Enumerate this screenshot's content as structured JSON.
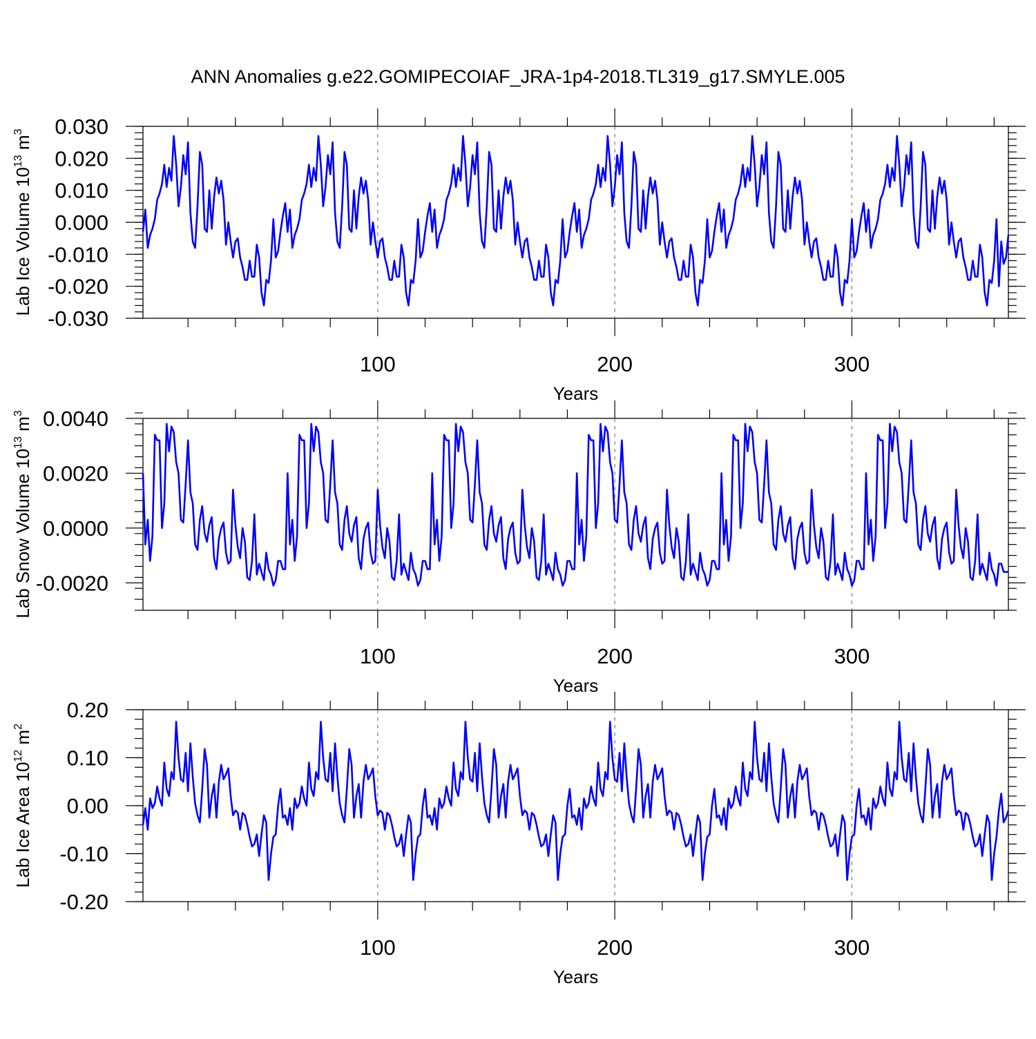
{
  "chart_data": {
    "type": "line",
    "title": "ANN Anomalies g.e22.GOMIPECOIAF_JRA-1p4-2018.TL319_g17.SMYLE.005",
    "line_color": "#0000ff",
    "x_start": 1,
    "x_end": 366,
    "xlim": [
      1,
      366
    ],
    "x_major_ticks": [
      100,
      200,
      300
    ],
    "x_minor_ticks": [
      20,
      40,
      60,
      80,
      120,
      140,
      160,
      180,
      220,
      240,
      260,
      280,
      320,
      340,
      360
    ],
    "x_reference_lines": [
      100,
      200,
      300
    ],
    "period": 61,
    "panels": [
      {
        "id": "ice-volume",
        "ylabel_main": "Lab Ice Volume 10",
        "ylabel_exp": "13",
        "ylabel_unit": " m",
        "ylabel_unit_exp": "3",
        "xlabel": "Years",
        "ylim": [
          -0.03,
          0.03
        ],
        "yticks": [
          {
            "value": 0.03,
            "label": "0.030"
          },
          {
            "value": 0.02,
            "label": "0.020"
          },
          {
            "value": 0.01,
            "label": "0.010"
          },
          {
            "value": 0.0,
            "label": "0.000"
          },
          {
            "value": -0.01,
            "label": "-0.010"
          },
          {
            "value": -0.02,
            "label": "-0.020"
          },
          {
            "value": -0.03,
            "label": "-0.030"
          }
        ],
        "y_minor_step": 0.002,
        "xtick_labels": [
          "100",
          "200",
          "300"
        ],
        "cycle_values": [
          -0.003,
          0.004,
          -0.008,
          -0.004,
          -0.002,
          0.001,
          0.007,
          0.009,
          0.012,
          0.018,
          0.011,
          0.017,
          0.013,
          0.027,
          0.018,
          0.005,
          0.011,
          0.021,
          0.015,
          0.025,
          0.003,
          -0.006,
          -0.008,
          0.005,
          0.022,
          0.018,
          -0.002,
          -0.003,
          0.01,
          -0.002,
          0.008,
          0.014,
          0.009,
          0.013,
          0.007,
          -0.007,
          0.0,
          -0.006,
          -0.011,
          -0.006,
          -0.005,
          -0.011,
          -0.014,
          -0.018,
          -0.018,
          -0.012,
          -0.017,
          -0.017,
          -0.007,
          -0.011,
          -0.022,
          -0.026,
          -0.018,
          -0.019,
          -0.012,
          0.001,
          -0.011,
          -0.009,
          -0.003,
          0.002,
          0.006
        ],
        "tail_values": [
          -0.02,
          -0.006,
          -0.013,
          -0.011,
          -0.004
        ]
      },
      {
        "id": "snow-volume",
        "ylabel_main": "Lab Snow Volume 10",
        "ylabel_exp": "13",
        "ylabel_unit": " m",
        "ylabel_unit_exp": "3",
        "xlabel": "Years",
        "ylim": [
          -0.003,
          0.004
        ],
        "yticks": [
          {
            "value": 0.004,
            "label": "0.0040"
          },
          {
            "value": 0.002,
            "label": "0.0020"
          },
          {
            "value": 0.0,
            "label": "0.0000"
          },
          {
            "value": -0.002,
            "label": "-0.0020"
          }
        ],
        "y_minor_step": 0.0004,
        "xtick_labels": [
          "100",
          "200",
          "300"
        ],
        "cycle_values": [
          0.002,
          -0.0006,
          0.0003,
          -0.0012,
          -0.0003,
          0.0034,
          0.0032,
          0.0032,
          0.0,
          0.0009,
          0.0038,
          0.0028,
          0.0037,
          0.0035,
          0.0024,
          0.002,
          0.0003,
          0.0002,
          0.0016,
          0.0032,
          0.0013,
          0.0009,
          -0.0006,
          -0.0008,
          0.0003,
          0.0008,
          -0.0002,
          -0.0005,
          0.0001,
          0.0004,
          -0.0011,
          -0.0015,
          -0.0004,
          0.0,
          0.0002,
          -0.0009,
          -0.0013,
          -0.0012,
          0.0014,
          0.0001,
          -0.0007,
          -0.0011,
          0.0,
          -0.0005,
          -0.0018,
          -0.0019,
          -0.0012,
          0.0005,
          -0.0017,
          -0.0013,
          -0.0016,
          -0.0019,
          -0.0009,
          -0.0015,
          -0.0017,
          -0.0021,
          -0.0019,
          -0.0012,
          -0.0012,
          -0.0015,
          -0.0015
        ],
        "tail_values": [
          -0.0013,
          -0.0013,
          -0.0016,
          -0.0016,
          -0.0016
        ]
      },
      {
        "id": "ice-area",
        "ylabel_main": "Lab Ice Area 10",
        "ylabel_exp": "12",
        "ylabel_unit": " m",
        "ylabel_unit_exp": "2",
        "xlabel": "Years",
        "ylim": [
          -0.2,
          0.2
        ],
        "yticks": [
          {
            "value": 0.2,
            "label": "0.20"
          },
          {
            "value": 0.1,
            "label": "0.10"
          },
          {
            "value": 0.0,
            "label": "0.00"
          },
          {
            "value": -0.1,
            "label": "-0.10"
          },
          {
            "value": -0.2,
            "label": "-0.20"
          }
        ],
        "y_minor_step": 0.02,
        "xtick_labels": [
          "100",
          "200",
          "300"
        ],
        "cycle_values": [
          -0.04,
          -0.005,
          -0.05,
          0.015,
          -0.005,
          0.005,
          0.04,
          0.015,
          0.0,
          0.09,
          0.035,
          0.02,
          0.07,
          0.055,
          0.175,
          0.1,
          0.055,
          0.05,
          0.11,
          0.03,
          0.13,
          0.06,
          0.005,
          -0.02,
          -0.035,
          0.035,
          0.118,
          0.085,
          -0.025,
          0.02,
          0.045,
          -0.025,
          0.05,
          0.085,
          0.055,
          0.065,
          0.078,
          0.02,
          -0.02,
          -0.01,
          -0.015,
          -0.05,
          -0.015,
          -0.02,
          -0.04,
          -0.065,
          -0.085,
          -0.08,
          -0.06,
          -0.105,
          -0.06,
          -0.02,
          -0.035,
          -0.155,
          -0.1,
          -0.065,
          -0.06,
          0.0,
          0.035,
          -0.025,
          -0.02
        ],
        "tail_values": [
          -0.065,
          -0.01,
          0.025,
          -0.035,
          -0.025,
          -0.01
        ]
      }
    ]
  }
}
